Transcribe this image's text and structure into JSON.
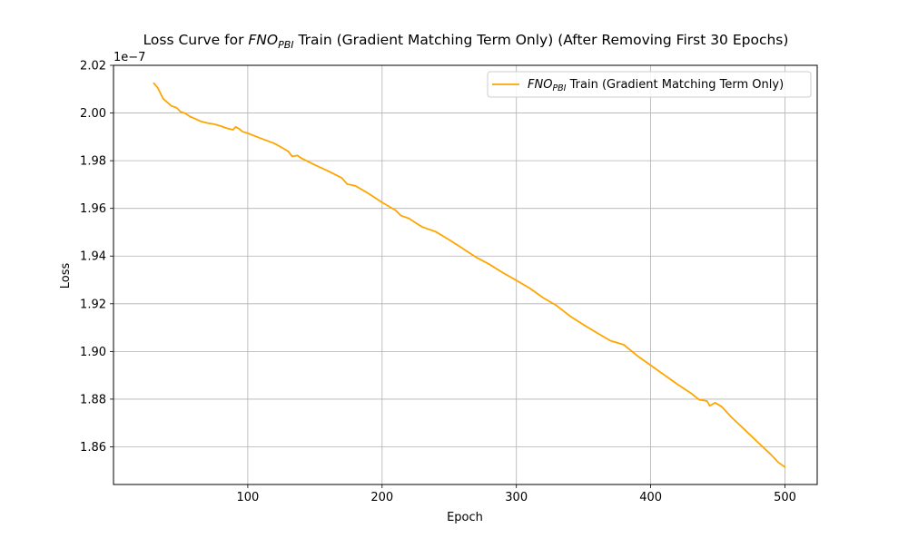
{
  "chart_data": {
    "type": "line",
    "title_prefix": "Loss Curve for ",
    "title_italic": "FNO",
    "title_sub": "PBI",
    "title_suffix": " Train (Gradient Matching Term Only) (After Removing First 30 Epochs)",
    "xlabel": "Epoch",
    "ylabel": "Loss",
    "y_offset_label": "1e−7",
    "xlim": [
      0,
      524
    ],
    "ylim": [
      1.8442,
      2.02
    ],
    "x_ticks": [
      100,
      200,
      300,
      400,
      500
    ],
    "x_tick_labels": [
      "100",
      "200",
      "300",
      "400",
      "500"
    ],
    "y_ticks": [
      1.86,
      1.88,
      1.9,
      1.92,
      1.94,
      1.96,
      1.98,
      2.0,
      2.02
    ],
    "y_tick_labels": [
      "1.86",
      "1.88",
      "1.90",
      "1.92",
      "1.94",
      "1.96",
      "1.98",
      "2.00",
      "2.02"
    ],
    "grid": true,
    "legend_position": "top-right",
    "series": [
      {
        "legend_italic": "FNO",
        "legend_sub": "PBI",
        "legend_suffix": " Train (Gradient Matching Term Only)",
        "color": "#ffa500",
        "points": [
          [
            30,
            2.0125
          ],
          [
            33,
            2.0105
          ],
          [
            37,
            2.006
          ],
          [
            40,
            2.0045
          ],
          [
            43,
            2.003
          ],
          [
            47,
            2.0022
          ],
          [
            50,
            2.0005
          ],
          [
            53,
            2.0
          ],
          [
            57,
            1.9985
          ],
          [
            60,
            1.9978
          ],
          [
            65,
            1.9965
          ],
          [
            70,
            1.9958
          ],
          [
            75,
            1.9953
          ],
          [
            80,
            1.9945
          ],
          [
            85,
            1.9935
          ],
          [
            89,
            1.993
          ],
          [
            91,
            1.9942
          ],
          [
            94,
            1.9932
          ],
          [
            96,
            1.9922
          ],
          [
            100,
            1.9915
          ],
          [
            110,
            1.9893
          ],
          [
            120,
            1.9872
          ],
          [
            130,
            1.984
          ],
          [
            133,
            1.9818
          ],
          [
            137,
            1.9822
          ],
          [
            140,
            1.981
          ],
          [
            150,
            1.9782
          ],
          [
            160,
            1.9756
          ],
          [
            170,
            1.9728
          ],
          [
            174,
            1.9702
          ],
          [
            180,
            1.9695
          ],
          [
            190,
            1.9662
          ],
          [
            200,
            1.9625
          ],
          [
            210,
            1.9592
          ],
          [
            214,
            1.957
          ],
          [
            220,
            1.9558
          ],
          [
            227,
            1.9532
          ],
          [
            230,
            1.9522
          ],
          [
            240,
            1.9502
          ],
          [
            250,
            1.9468
          ],
          [
            260,
            1.9432
          ],
          [
            270,
            1.9395
          ],
          [
            280,
            1.9365
          ],
          [
            290,
            1.933
          ],
          [
            300,
            1.9298
          ],
          [
            310,
            1.9265
          ],
          [
            320,
            1.9225
          ],
          [
            330,
            1.9192
          ],
          [
            340,
            1.9148
          ],
          [
            350,
            1.9112
          ],
          [
            360,
            1.9078
          ],
          [
            370,
            1.9045
          ],
          [
            380,
            1.9028
          ],
          [
            390,
            1.8982
          ],
          [
            400,
            1.8942
          ],
          [
            410,
            1.8902
          ],
          [
            420,
            1.8862
          ],
          [
            430,
            1.8825
          ],
          [
            436,
            1.8798
          ],
          [
            442,
            1.8792
          ],
          [
            444,
            1.8772
          ],
          [
            448,
            1.8785
          ],
          [
            453,
            1.8768
          ],
          [
            460,
            1.8725
          ],
          [
            470,
            1.8672
          ],
          [
            480,
            1.8618
          ],
          [
            490,
            1.8565
          ],
          [
            495,
            1.8535
          ],
          [
            500,
            1.8515
          ]
        ]
      }
    ]
  }
}
